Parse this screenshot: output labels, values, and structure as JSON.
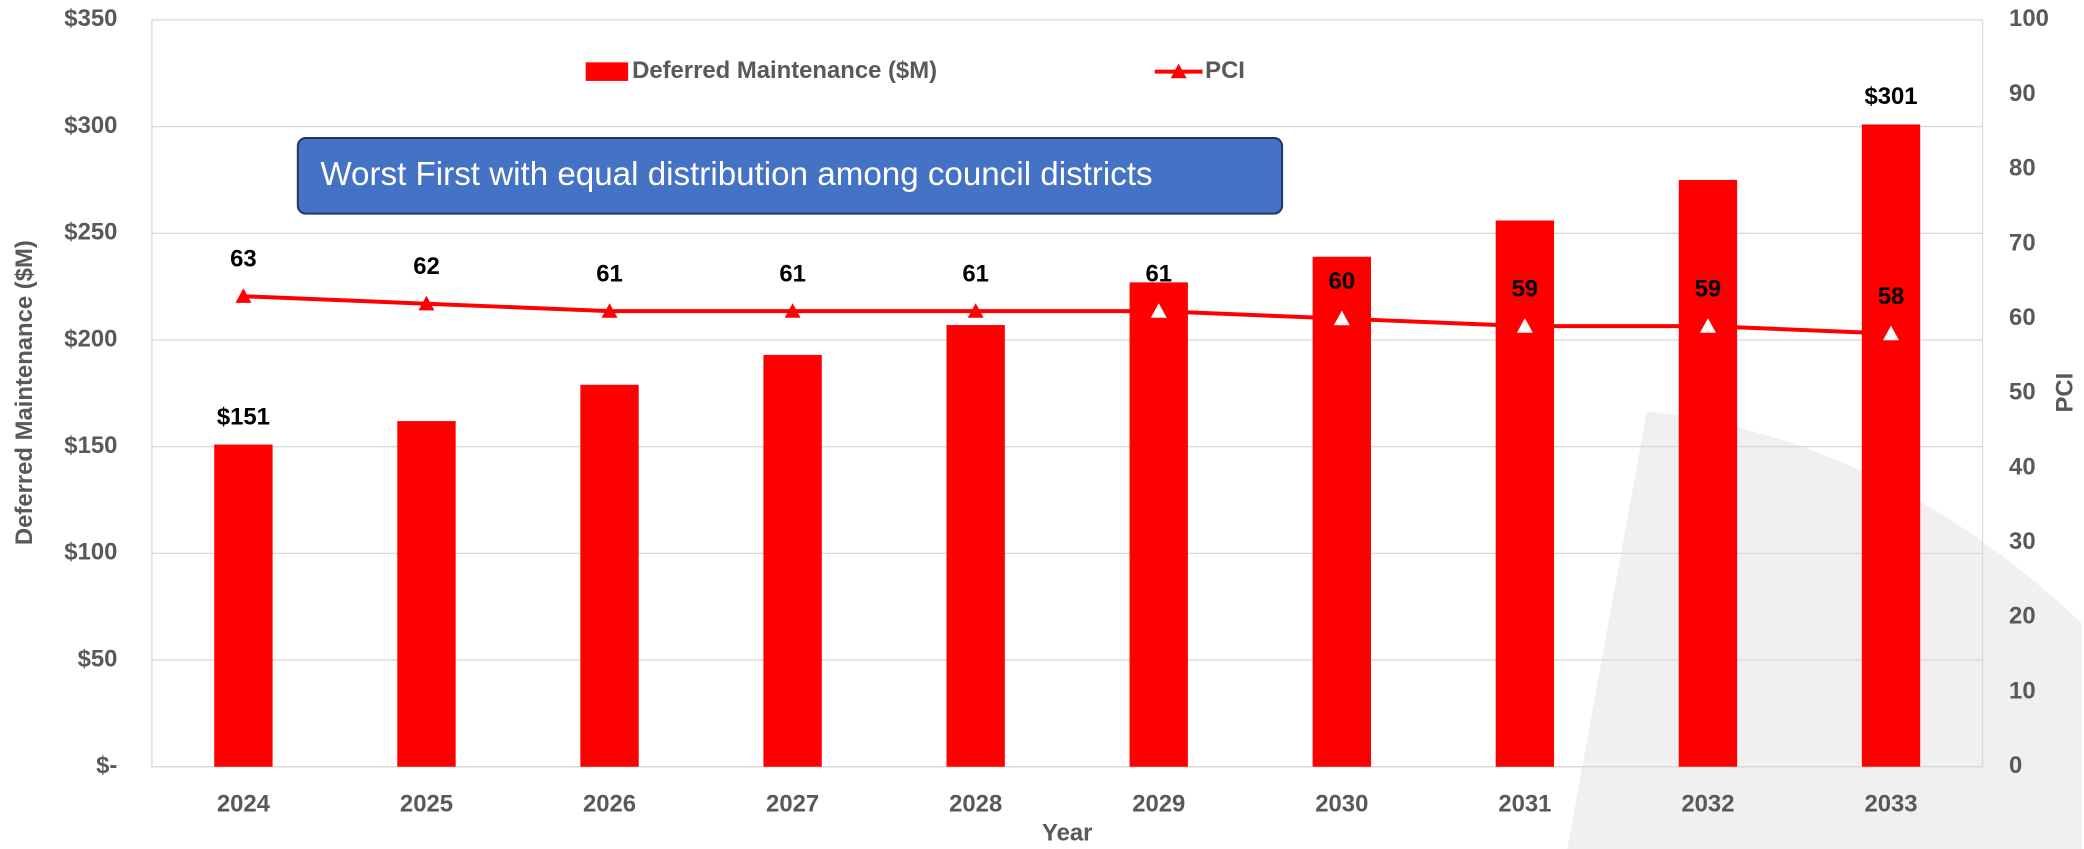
{
  "chart_data": {
    "type": "bar",
    "categories": [
      "2024",
      "2025",
      "2026",
      "2027",
      "2028",
      "2029",
      "2030",
      "2031",
      "2032",
      "2033"
    ],
    "series": [
      {
        "name": "Deferred Maintenance ($M)",
        "type": "bar",
        "color": "#ff0000",
        "values": [
          151,
          162,
          179,
          193,
          207,
          227,
          239,
          256,
          275,
          301
        ],
        "value_labels": [
          "$151",
          null,
          null,
          null,
          null,
          null,
          null,
          null,
          null,
          "$301"
        ]
      },
      {
        "name": "PCI",
        "type": "line",
        "axis": "y2",
        "color": "#ff0000",
        "values": [
          63,
          62,
          61,
          61,
          61,
          61,
          60,
          59,
          59,
          58
        ]
      }
    ],
    "ylim": [
      0,
      350
    ],
    "yticks": [
      {
        "value": 0,
        "label": "$-"
      },
      {
        "value": 50,
        "label": "$50"
      },
      {
        "value": 100,
        "label": "$100"
      },
      {
        "value": 150,
        "label": "$150"
      },
      {
        "value": 200,
        "label": "$200"
      },
      {
        "value": 250,
        "label": "$250"
      },
      {
        "value": 300,
        "label": "$300"
      },
      {
        "value": 350,
        "label": "$350"
      }
    ],
    "y2lim": [
      0,
      100
    ],
    "y2ticks": [
      0,
      10,
      20,
      30,
      40,
      50,
      60,
      70,
      80,
      90,
      100
    ],
    "xlabel": "Year",
    "ylabel": "Deferred Maintenance ($M)",
    "y2label": "PCI",
    "annotation": "Worst First with equal distribution among council districts",
    "grid": true,
    "legend": "top"
  }
}
